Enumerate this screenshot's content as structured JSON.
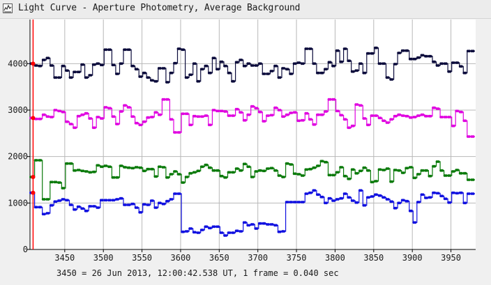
{
  "window": {
    "title": "Light Curve - Aperture Photometry, Average Background",
    "icon": "light-curve-app-icon"
  },
  "footer": {
    "status": "3450 = 26 Jun 2013, 12:00:42.538 UT, 1 frame = 0.040 sec"
  },
  "colors": {
    "background": "#f0f0f0",
    "grid": "#b8b8b8",
    "axis": "#000000",
    "marker_line": "#ff0000"
  },
  "chart_data": {
    "type": "line",
    "title": "",
    "xlabel": "",
    "ylabel": "",
    "xlim": [
      3405,
      3982
    ],
    "ylim": [
      0,
      4950
    ],
    "grid": true,
    "legend": "none",
    "x_ticks": [
      3450,
      3500,
      3550,
      3600,
      3650,
      3700,
      3750,
      3800,
      3850,
      3900,
      3950
    ],
    "y_ticks": [
      0,
      1000,
      2000,
      3000,
      4000
    ],
    "marker_x": 3409,
    "series": [
      {
        "color": "#0b0b3b",
        "step": true,
        "x": [
          3405,
          3411,
          3416,
          3421,
          3426,
          3431,
          3436,
          3441,
          3446,
          3451,
          3456,
          3461,
          3466,
          3471,
          3476,
          3481,
          3486,
          3491,
          3496,
          3501,
          3506,
          3511,
          3516,
          3521,
          3526,
          3531,
          3536,
          3541,
          3546,
          3551,
          3556,
          3561,
          3566,
          3571,
          3576,
          3581,
          3586,
          3591,
          3596,
          3601,
          3606,
          3611,
          3616,
          3621,
          3626,
          3631,
          3636,
          3641,
          3646,
          3651,
          3656,
          3661,
          3666,
          3671,
          3676,
          3681,
          3686,
          3691,
          3696,
          3701,
          3706,
          3711,
          3716,
          3721,
          3726,
          3731,
          3736,
          3741,
          3746,
          3751,
          3756,
          3761,
          3766,
          3771,
          3776,
          3781,
          3786,
          3791,
          3796,
          3801,
          3806,
          3811,
          3816,
          3821,
          3826,
          3831,
          3836,
          3841,
          3846,
          3851,
          3856,
          3861,
          3866,
          3871,
          3876,
          3881,
          3886,
          3891,
          3896,
          3901,
          3906,
          3911,
          3916,
          3921,
          3926,
          3931,
          3936,
          3941,
          3946,
          3951,
          3956,
          3961,
          3966,
          3971,
          3976
        ],
        "y": [
          4000,
          3960,
          3950,
          4080,
          4120,
          3960,
          3700,
          3700,
          3950,
          3850,
          3700,
          3820,
          3820,
          3980,
          3700,
          3750,
          3980,
          4000,
          3970,
          4300,
          4300,
          3970,
          3780,
          4000,
          4300,
          4300,
          3950,
          3880,
          3720,
          3800,
          3700,
          3640,
          3620,
          3900,
          3900,
          3600,
          3800,
          4010,
          4320,
          4300,
          3700,
          3760,
          4000,
          3620,
          3880,
          3950,
          3800,
          4120,
          3880,
          4040,
          3950,
          3800,
          3620,
          4030,
          4080,
          3950,
          4000,
          3960,
          3960,
          4000,
          3780,
          3780,
          3840,
          3950,
          3700,
          3900,
          3880,
          3780,
          4000,
          4020,
          4000,
          4320,
          4320,
          4000,
          3800,
          3800,
          3880,
          4030,
          3950,
          4280,
          4040,
          4320,
          4060,
          3830,
          3850,
          4000,
          3800,
          4220,
          4220,
          4340,
          4000,
          4000,
          3700,
          3660,
          3990,
          4230,
          4280,
          4280,
          4100,
          4100,
          4130,
          4180,
          4160,
          4160,
          4040,
          3960,
          4000,
          4000,
          3830,
          4020,
          4020,
          3940,
          3800,
          4270,
          4270
        ]
      },
      {
        "color": "#e000e0",
        "step": true,
        "x": [
          3405,
          3411,
          3416,
          3421,
          3426,
          3431,
          3436,
          3441,
          3446,
          3451,
          3456,
          3461,
          3466,
          3471,
          3476,
          3481,
          3486,
          3491,
          3496,
          3501,
          3506,
          3511,
          3516,
          3521,
          3526,
          3531,
          3536,
          3541,
          3546,
          3551,
          3556,
          3561,
          3566,
          3571,
          3576,
          3581,
          3586,
          3591,
          3596,
          3601,
          3606,
          3611,
          3616,
          3621,
          3626,
          3631,
          3636,
          3641,
          3646,
          3651,
          3656,
          3661,
          3666,
          3671,
          3676,
          3681,
          3686,
          3691,
          3696,
          3701,
          3706,
          3711,
          3716,
          3721,
          3726,
          3731,
          3736,
          3741,
          3746,
          3751,
          3756,
          3761,
          3766,
          3771,
          3776,
          3781,
          3786,
          3791,
          3796,
          3801,
          3806,
          3811,
          3816,
          3821,
          3826,
          3831,
          3836,
          3841,
          3846,
          3851,
          3856,
          3861,
          3866,
          3871,
          3876,
          3881,
          3886,
          3891,
          3896,
          3901,
          3906,
          3911,
          3916,
          3921,
          3926,
          3931,
          3936,
          3941,
          3946,
          3951,
          3956,
          3961,
          3966,
          3971,
          3976
        ],
        "y": [
          2830,
          2810,
          2810,
          2900,
          2860,
          2850,
          3000,
          2980,
          2960,
          2750,
          2700,
          2620,
          2870,
          2900,
          2930,
          2820,
          2620,
          2850,
          2820,
          3060,
          3040,
          2860,
          2700,
          2970,
          3100,
          3060,
          2860,
          2720,
          2680,
          2750,
          2840,
          2850,
          2950,
          2900,
          3230,
          3230,
          2800,
          2520,
          2520,
          2920,
          2920,
          2680,
          2870,
          2860,
          2860,
          2880,
          2680,
          3000,
          2980,
          2980,
          2970,
          2880,
          2880,
          3020,
          2950,
          2780,
          2900,
          3080,
          3040,
          2960,
          2760,
          2880,
          2890,
          3050,
          3000,
          2860,
          2900,
          2940,
          2950,
          2770,
          2780,
          2930,
          2800,
          2690,
          2900,
          2900,
          2970,
          3230,
          3230,
          2980,
          2890,
          2800,
          2620,
          2660,
          3120,
          3100,
          2820,
          2680,
          2880,
          2880,
          2830,
          2770,
          2730,
          2800,
          2870,
          2900,
          2880,
          2870,
          2840,
          2850,
          2880,
          2900,
          2870,
          2870,
          3050,
          3030,
          2850,
          2850,
          2850,
          2660,
          2980,
          2960,
          2770,
          2430,
          2430
        ]
      },
      {
        "color": "#0a7a0a",
        "step": true,
        "x": [
          3405,
          3411,
          3416,
          3421,
          3426,
          3431,
          3436,
          3441,
          3446,
          3451,
          3456,
          3461,
          3466,
          3471,
          3476,
          3481,
          3486,
          3491,
          3496,
          3501,
          3506,
          3511,
          3516,
          3521,
          3526,
          3531,
          3536,
          3541,
          3546,
          3551,
          3556,
          3561,
          3566,
          3571,
          3576,
          3581,
          3586,
          3591,
          3596,
          3601,
          3606,
          3611,
          3616,
          3621,
          3626,
          3631,
          3636,
          3641,
          3646,
          3651,
          3656,
          3661,
          3666,
          3671,
          3676,
          3681,
          3686,
          3691,
          3696,
          3701,
          3706,
          3711,
          3716,
          3721,
          3726,
          3731,
          3736,
          3741,
          3746,
          3751,
          3756,
          3761,
          3766,
          3771,
          3776,
          3781,
          3786,
          3791,
          3796,
          3801,
          3806,
          3811,
          3816,
          3821,
          3826,
          3831,
          3836,
          3841,
          3846,
          3851,
          3856,
          3861,
          3866,
          3871,
          3876,
          3881,
          3886,
          3891,
          3896,
          3901,
          3906,
          3911,
          3916,
          3921,
          3926,
          3931,
          3936,
          3941,
          3946,
          3951,
          3956,
          3961,
          3966,
          3971,
          3976
        ],
        "y": [
          1560,
          1920,
          1920,
          1080,
          1080,
          1450,
          1450,
          1440,
          1320,
          1850,
          1850,
          1700,
          1710,
          1690,
          1680,
          1660,
          1670,
          1810,
          1780,
          1800,
          1780,
          1550,
          1550,
          1800,
          1770,
          1760,
          1750,
          1770,
          1760,
          1690,
          1730,
          1730,
          1570,
          1780,
          1770,
          1550,
          1620,
          1680,
          1620,
          1440,
          1560,
          1640,
          1660,
          1690,
          1780,
          1820,
          1760,
          1700,
          1700,
          1580,
          1550,
          1660,
          1660,
          1740,
          1700,
          1840,
          1780,
          1560,
          1680,
          1700,
          1690,
          1740,
          1750,
          1700,
          1590,
          1560,
          1850,
          1830,
          1630,
          1620,
          1590,
          1720,
          1730,
          1760,
          1800,
          1900,
          1880,
          1600,
          1600,
          1660,
          1770,
          1580,
          1520,
          1720,
          1640,
          1690,
          1760,
          1700,
          1450,
          1470,
          1720,
          1710,
          1740,
          1460,
          1710,
          1700,
          1650,
          1750,
          1770,
          1540,
          1620,
          1700,
          1700,
          1580,
          1790,
          1890,
          1700,
          1590,
          1590,
          1680,
          1710,
          1640,
          1640,
          1500,
          1500
        ]
      },
      {
        "color": "#1010e0",
        "step": true,
        "x": [
          3405,
          3411,
          3416,
          3421,
          3426,
          3431,
          3436,
          3441,
          3446,
          3451,
          3456,
          3461,
          3466,
          3471,
          3476,
          3481,
          3486,
          3491,
          3496,
          3501,
          3506,
          3511,
          3516,
          3521,
          3526,
          3531,
          3536,
          3541,
          3546,
          3551,
          3556,
          3561,
          3566,
          3571,
          3576,
          3581,
          3586,
          3591,
          3596,
          3601,
          3606,
          3611,
          3616,
          3621,
          3626,
          3631,
          3636,
          3641,
          3646,
          3651,
          3656,
          3661,
          3666,
          3671,
          3676,
          3681,
          3686,
          3691,
          3696,
          3701,
          3706,
          3711,
          3716,
          3721,
          3726,
          3731,
          3736,
          3741,
          3746,
          3751,
          3756,
          3761,
          3766,
          3771,
          3776,
          3781,
          3786,
          3791,
          3796,
          3801,
          3806,
          3811,
          3816,
          3821,
          3826,
          3831,
          3836,
          3841,
          3846,
          3851,
          3856,
          3861,
          3866,
          3871,
          3876,
          3881,
          3886,
          3891,
          3896,
          3901,
          3906,
          3911,
          3916,
          3921,
          3926,
          3931,
          3936,
          3941,
          3946,
          3951,
          3956,
          3961,
          3966,
          3971,
          3976
        ],
        "y": [
          1220,
          910,
          910,
          760,
          780,
          950,
          1030,
          1050,
          1080,
          1060,
          960,
          860,
          920,
          880,
          830,
          930,
          930,
          900,
          1060,
          1060,
          1060,
          1060,
          1080,
          1100,
          960,
          960,
          980,
          900,
          800,
          970,
          960,
          1050,
          900,
          1000,
          980,
          1040,
          1080,
          1200,
          1200,
          380,
          390,
          450,
          370,
          360,
          420,
          490,
          460,
          490,
          490,
          360,
          300,
          360,
          360,
          400,
          390,
          580,
          520,
          540,
          450,
          560,
          560,
          540,
          540,
          520,
          380,
          390,
          1020,
          1020,
          1020,
          1020,
          1020,
          1200,
          1220,
          1270,
          1180,
          1130,
          1000,
          1100,
          1050,
          1080,
          1100,
          1200,
          1120,
          1050,
          1010,
          1270,
          950,
          1120,
          1140,
          1180,
          1160,
          1120,
          1080,
          1030,
          890,
          1000,
          1060,
          1040,
          830,
          580,
          1020,
          1180,
          1110,
          1120,
          1220,
          1210,
          1150,
          1090,
          1010,
          1220,
          1210,
          1220,
          1000,
          1200,
          1200
        ]
      }
    ]
  }
}
